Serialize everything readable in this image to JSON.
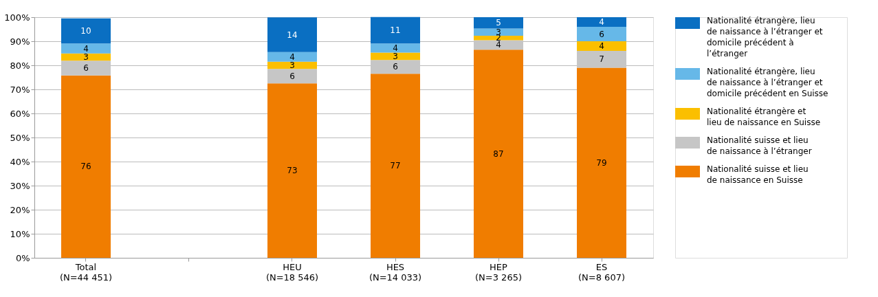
{
  "chart_data": {
    "type": "bar",
    "stacked": true,
    "legend": "right",
    "grid": "y",
    "categories": [
      "Total (N=44 451)",
      null,
      "HEU (N=18 546)",
      "HES (N=14 033)",
      "HEP (N=3 265)",
      "ES (N=8 607)"
    ],
    "ylim": [
      0,
      100
    ],
    "yticks": [
      {
        "value": 0,
        "label": "0%"
      },
      {
        "value": 10,
        "label": "10%"
      },
      {
        "value": 20,
        "label": "20%"
      },
      {
        "value": 30,
        "label": "30%"
      },
      {
        "value": 40,
        "label": "40%"
      },
      {
        "value": 50,
        "label": "50%"
      },
      {
        "value": 60,
        "label": "60%"
      },
      {
        "value": 70,
        "label": "70%"
      },
      {
        "value": 80,
        "label": "80%"
      },
      {
        "value": 90,
        "label": "90%"
      },
      {
        "value": 100,
        "label": "100%"
      }
    ],
    "series": [
      {
        "name": "Nationalité suisse et lieu de naissance en Suisse",
        "color": "#f07d00",
        "values": [
          75.8,
          null,
          72.5,
          76.5,
          86.5,
          79
        ],
        "value_labels": [
          "76",
          null,
          "73",
          "77",
          "87",
          "79"
        ]
      },
      {
        "name": "Nationalité suisse et lieu de naissance à l’étranger",
        "color": "#c6c6c6",
        "values": [
          6.1,
          null,
          6.0,
          5.7,
          3.9,
          7
        ],
        "value_labels": [
          "6",
          null,
          "6",
          "6",
          "4",
          "7"
        ]
      },
      {
        "name": "Nationalité étrangère et lieu de naissance en Suisse",
        "color": "#fbbf00",
        "values": [
          3.0,
          null,
          3.0,
          3.1,
          1.9,
          4
        ],
        "value_labels": [
          "3",
          null,
          "3",
          "3",
          "2",
          "4"
        ]
      },
      {
        "name": "Nationalité étrangère, lieu de naissance à l’étranger et domicile précédent en Suisse",
        "color": "#66b8e8",
        "values": [
          4.2,
          null,
          4.0,
          3.8,
          3.0,
          6
        ],
        "value_labels": [
          "4",
          null,
          "4",
          "4",
          "3",
          "6"
        ]
      },
      {
        "name": "Nationalité étrangère, lieu de naissance à l’étranger et domicile précédent à l’étranger",
        "color": "#0a6fc2",
        "values": [
          10.4,
          null,
          14.4,
          11.0,
          4.7,
          4
        ],
        "value_labels": [
          "10",
          null,
          "14",
          "11",
          "5",
          "4"
        ]
      }
    ]
  }
}
